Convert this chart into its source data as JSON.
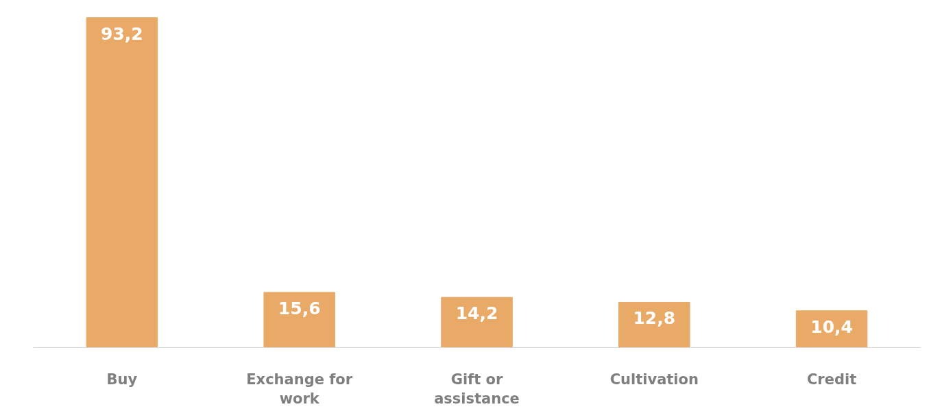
{
  "chart_data": {
    "type": "bar",
    "categories": [
      "Buy",
      "Exchange for work",
      "Gift or assistance",
      "Cultivation",
      "Credit"
    ],
    "values": [
      93.2,
      15.6,
      14.2,
      12.8,
      10.4
    ],
    "value_labels": [
      "93,2",
      "15,6",
      "14,2",
      "12,8",
      "10,4"
    ],
    "color": "#e8aa66",
    "grid": false
  }
}
